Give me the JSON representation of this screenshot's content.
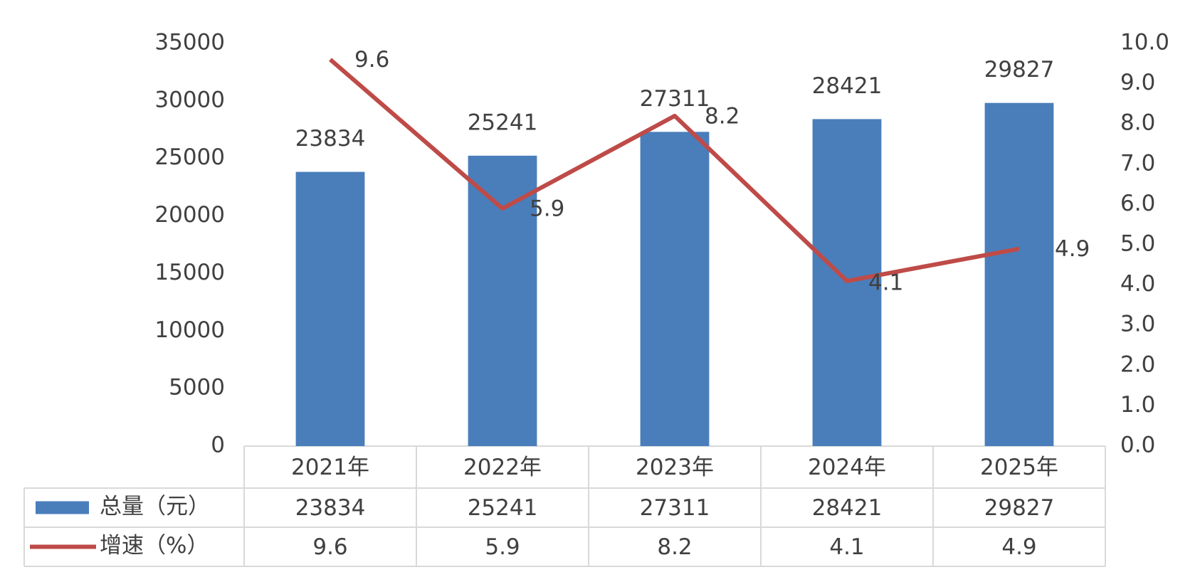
{
  "chart_data": {
    "type": "bar",
    "categories": [
      "2021年",
      "2022年",
      "2023年",
      "2024年",
      "2025年"
    ],
    "series": [
      {
        "name": "总量（元）",
        "type": "bar",
        "color": "#4a7ebb",
        "values": [
          23834,
          25241,
          27311,
          28421,
          29827
        ]
      },
      {
        "name": "增速（%）",
        "type": "line",
        "axis": "y2",
        "color": "#be4b48",
        "values": [
          9.6,
          5.9,
          8.2,
          4.1,
          4.9
        ]
      }
    ],
    "ylim": [
      0,
      35000
    ],
    "yticks": [
      0,
      5000,
      10000,
      15000,
      20000,
      25000,
      30000,
      35000
    ],
    "y2lim": [
      0,
      10
    ],
    "y2ticks": [
      {
        "value": 0,
        "label": "0.0"
      },
      {
        "value": 1,
        "label": "1.0"
      },
      {
        "value": 2,
        "label": "2.0"
      },
      {
        "value": 3,
        "label": "3.0"
      },
      {
        "value": 4,
        "label": "4.0"
      },
      {
        "value": 5,
        "label": "5.0"
      },
      {
        "value": 6,
        "label": "6.0"
      },
      {
        "value": 7,
        "label": "7.0"
      },
      {
        "value": 8,
        "label": "8.0"
      },
      {
        "value": 9,
        "label": "9.0"
      },
      {
        "value": 10,
        "label": "10.0"
      }
    ],
    "data_table": true
  }
}
